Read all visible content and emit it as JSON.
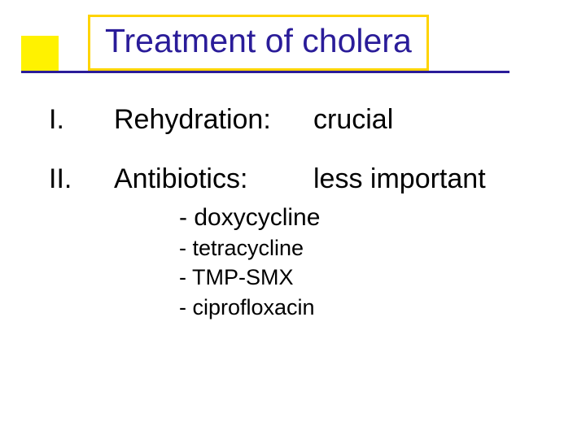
{
  "title": "Treatment of cholera",
  "colors": {
    "accent_yellow": "#fff200",
    "border_yellow": "#ffd400",
    "title_text": "#2a1c99",
    "underline": "#2a1c99",
    "body_text": "#000000",
    "background": "#ffffff"
  },
  "typography": {
    "title_fontsize": 41,
    "body_fontsize": 34,
    "subitem_first_fontsize": 30,
    "subitem_fontsize": 27,
    "font_family": "Verdana"
  },
  "items": [
    {
      "numeral": "I.",
      "label": "Rehydration:",
      "note": "crucial"
    },
    {
      "numeral": "II.",
      "label": "Antibiotics:",
      "note": "less important"
    }
  ],
  "sublist": [
    "- doxycycline",
    "- tetracycline",
    "- TMP-SMX",
    "- ciprofloxacin"
  ]
}
